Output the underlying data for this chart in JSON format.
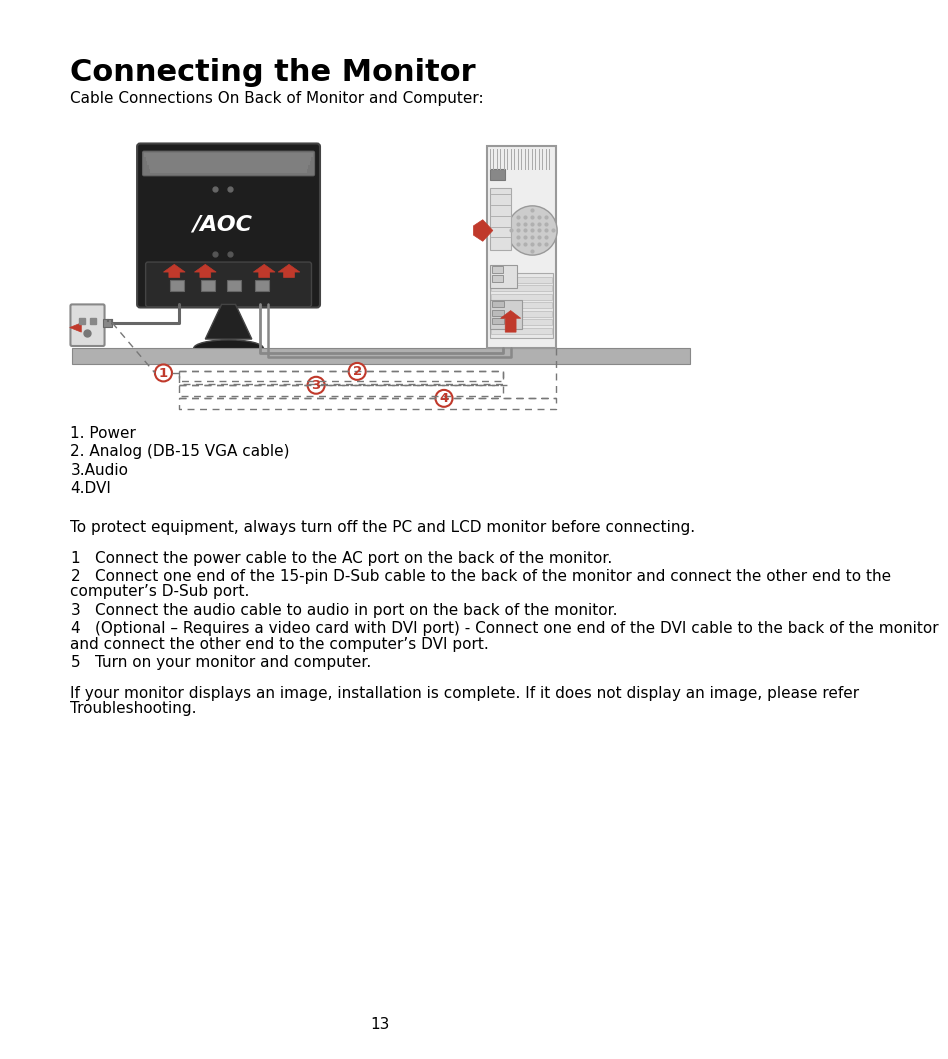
{
  "title": "Connecting the Monitor",
  "subtitle": "Cable Connections On Back of Monitor and Computer:",
  "bg_color": "#ffffff",
  "text_color": "#000000",
  "label_items": [
    "1. Power",
    "2. Analog (DB-15 VGA cable)",
    "3.Audio",
    "4.DVI"
  ],
  "protection_note": "To protect equipment, always turn off the PC and LCD monitor before connecting.",
  "steps": [
    {
      "num": "1",
      "text": "Connect the power cable to the AC port on the back of the monitor."
    },
    {
      "num": "2",
      "text": "Connect one end of the 15-pin D-Sub cable to the back of the monitor and connect the other end to the\ncomputer’s D-Sub port."
    },
    {
      "num": "3",
      "text": "Connect the audio cable to audio in port on the back of the monitor."
    },
    {
      "num": "4",
      "text": "(Optional – Requires a video card with DVI port) - Connect one end of the DVI cable to the back of the monitor\nand connect the other end to the computer’s DVI port."
    },
    {
      "num": "5",
      "text": "Turn on your monitor and computer."
    }
  ],
  "closing": "If your monitor displays an image, installation is complete. If it does not display an image, please refer\nTroubleshooting.",
  "page_number": "13",
  "arrow_color": "#c0392b",
  "monitor_dark": "#1e1e1e",
  "monitor_mid": "#2d2d2d",
  "monitor_gray": "#888888",
  "desk_color": "#b0b0b0",
  "computer_light": "#d8d8d8",
  "computer_white": "#eeeeee",
  "cable_gray": "#888888",
  "dashed_gray": "#777777",
  "title_fontsize": 22,
  "body_fontsize": 11,
  "subtitle_fontsize": 11
}
